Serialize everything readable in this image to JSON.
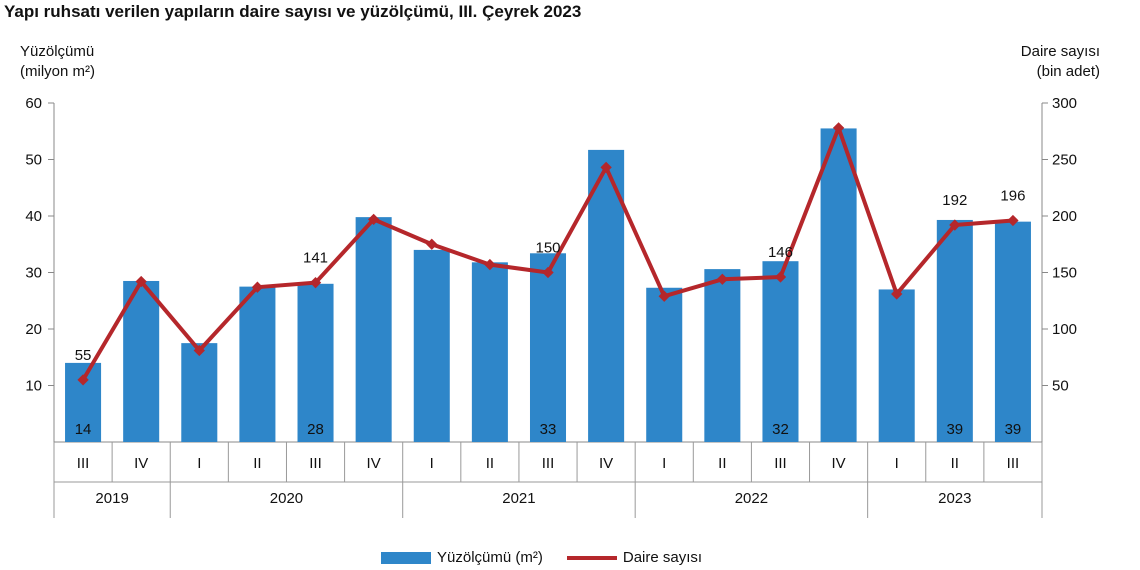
{
  "title": "Yapı ruhsatı verilen yapıların daire sayısı ve yüzölçümü, III. Çeyrek 2023",
  "y_left_label": [
    "Yüzölçümü",
    "(milyon m²)"
  ],
  "y_right_label": [
    "Daire sayısı",
    "(bin adet)"
  ],
  "colors": {
    "bar": "#2e86c9",
    "line": "#b5272b"
  },
  "legend": {
    "bar": "Yüzölçümü (m²)",
    "line": "Daire sayısı"
  },
  "chart_data": {
    "type": "bar",
    "categories": [
      "III",
      "IV",
      "I",
      "II",
      "III",
      "IV",
      "I",
      "II",
      "III",
      "IV",
      "I",
      "II",
      "III",
      "IV",
      "I",
      "II",
      "III"
    ],
    "year_groups": [
      {
        "year": "2019",
        "count": 2
      },
      {
        "year": "2020",
        "count": 4
      },
      {
        "year": "2021",
        "count": 4
      },
      {
        "year": "2022",
        "count": 4
      },
      {
        "year": "2023",
        "count": 3
      }
    ],
    "series": [
      {
        "name": "Yüzölçümü (m²)",
        "type": "bar",
        "axis": "left",
        "values": [
          14,
          28.5,
          17.5,
          27.5,
          28,
          39.8,
          34,
          31.8,
          33.4,
          51.7,
          27.3,
          30.6,
          32,
          55.5,
          27,
          39.3,
          39
        ],
        "labels": [
          "14",
          "",
          "",
          "",
          "28",
          "",
          "",
          "",
          "33",
          "",
          "",
          "",
          "32",
          "",
          "",
          "39",
          "39"
        ]
      },
      {
        "name": "Daire sayısı",
        "type": "line",
        "axis": "right",
        "values": [
          55,
          142,
          81,
          137,
          141,
          197,
          175,
          157,
          150,
          243,
          129,
          144,
          146,
          278,
          131,
          192,
          196
        ],
        "labels": [
          "55",
          "",
          "",
          "",
          "141",
          "",
          "",
          "",
          "150",
          "",
          "",
          "",
          "146",
          "",
          "",
          "192",
          "196"
        ]
      }
    ],
    "y_left": {
      "ylim": [
        0,
        60
      ],
      "ticks": [
        10,
        20,
        30,
        40,
        50,
        60
      ]
    },
    "y_right": {
      "ylim": [
        0,
        300
      ],
      "ticks": [
        50,
        100,
        150,
        200,
        250,
        300
      ]
    },
    "legend_position": "bottom"
  }
}
